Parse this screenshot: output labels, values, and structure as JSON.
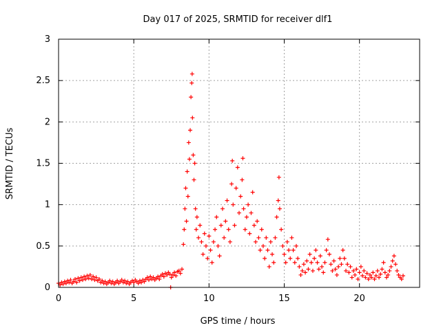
{
  "chart_data": {
    "type": "scatter",
    "title": "Day 017 of 2025, SRMTID for receiver dlf1",
    "xlabel": "GPS time / hours",
    "ylabel": "SRMTID / TECUs",
    "xlim": [
      0,
      24
    ],
    "ylim": [
      0,
      3
    ],
    "xticks": [
      0,
      5,
      10,
      15,
      20
    ],
    "yticks": [
      0,
      0.5,
      1,
      1.5,
      2,
      2.5,
      3
    ],
    "xtick_labels": [
      "0",
      "5",
      "10",
      "15",
      "20"
    ],
    "ytick_labels": [
      "0",
      "0.5",
      "1",
      "1.5",
      "2",
      "2.5",
      "3"
    ],
    "grid": true,
    "marker": "+",
    "color": "#ff0000",
    "series": [
      {
        "name": "dlf1",
        "points": [
          [
            0.0,
            0.05
          ],
          [
            0.1,
            0.03
          ],
          [
            0.2,
            0.06
          ],
          [
            0.3,
            0.04
          ],
          [
            0.4,
            0.07
          ],
          [
            0.5,
            0.05
          ],
          [
            0.6,
            0.08
          ],
          [
            0.7,
            0.06
          ],
          [
            0.8,
            0.09
          ],
          [
            0.9,
            0.05
          ],
          [
            1.0,
            0.07
          ],
          [
            1.1,
            0.1
          ],
          [
            1.2,
            0.06
          ],
          [
            1.3,
            0.11
          ],
          [
            1.4,
            0.08
          ],
          [
            1.5,
            0.12
          ],
          [
            1.6,
            0.09
          ],
          [
            1.7,
            0.13
          ],
          [
            1.8,
            0.1
          ],
          [
            1.9,
            0.14
          ],
          [
            2.0,
            0.11
          ],
          [
            2.1,
            0.15
          ],
          [
            2.2,
            0.1
          ],
          [
            2.3,
            0.13
          ],
          [
            2.4,
            0.09
          ],
          [
            2.5,
            0.12
          ],
          [
            2.6,
            0.08
          ],
          [
            2.7,
            0.1
          ],
          [
            2.8,
            0.06
          ],
          [
            2.9,
            0.08
          ],
          [
            3.0,
            0.05
          ],
          [
            3.1,
            0.07
          ],
          [
            3.2,
            0.04
          ],
          [
            3.3,
            0.06
          ],
          [
            3.4,
            0.08
          ],
          [
            3.5,
            0.05
          ],
          [
            3.6,
            0.07
          ],
          [
            3.7,
            0.04
          ],
          [
            3.8,
            0.06
          ],
          [
            3.9,
            0.08
          ],
          [
            4.0,
            0.05
          ],
          [
            4.1,
            0.07
          ],
          [
            4.2,
            0.09
          ],
          [
            4.3,
            0.06
          ],
          [
            4.4,
            0.08
          ],
          [
            4.5,
            0.05
          ],
          [
            4.6,
            0.07
          ],
          [
            4.7,
            0.04
          ],
          [
            4.8,
            0.06
          ],
          [
            4.9,
            0.08
          ],
          [
            5.0,
            0.06
          ],
          [
            5.1,
            0.09
          ],
          [
            5.2,
            0.07
          ],
          [
            5.3,
            0.05
          ],
          [
            5.4,
            0.08
          ],
          [
            5.5,
            0.06
          ],
          [
            5.6,
            0.09
          ],
          [
            5.7,
            0.07
          ],
          [
            5.8,
            0.1
          ],
          [
            5.9,
            0.12
          ],
          [
            6.0,
            0.09
          ],
          [
            6.1,
            0.13
          ],
          [
            6.2,
            0.1
          ],
          [
            6.3,
            0.12
          ],
          [
            6.4,
            0.09
          ],
          [
            6.5,
            0.11
          ],
          [
            6.6,
            0.13
          ],
          [
            6.7,
            0.1
          ],
          [
            6.8,
            0.14
          ],
          [
            6.9,
            0.16
          ],
          [
            7.0,
            0.13
          ],
          [
            7.1,
            0.17
          ],
          [
            7.2,
            0.15
          ],
          [
            7.3,
            0.18
          ],
          [
            7.4,
            0.16
          ],
          [
            7.45,
            0.0
          ],
          [
            7.5,
            0.12
          ],
          [
            7.6,
            0.15
          ],
          [
            7.7,
            0.18
          ],
          [
            7.8,
            0.14
          ],
          [
            7.9,
            0.19
          ],
          [
            8.0,
            0.2
          ],
          [
            8.1,
            0.17
          ],
          [
            8.2,
            0.22
          ],
          [
            8.3,
            0.52
          ],
          [
            8.35,
            0.7
          ],
          [
            8.4,
            0.95
          ],
          [
            8.45,
            1.2
          ],
          [
            8.5,
            0.8
          ],
          [
            8.55,
            1.4
          ],
          [
            8.6,
            1.1
          ],
          [
            8.65,
            1.75
          ],
          [
            8.7,
            1.55
          ],
          [
            8.75,
            1.9
          ],
          [
            8.8,
            2.3
          ],
          [
            8.85,
            2.47
          ],
          [
            8.88,
            2.58
          ],
          [
            8.9,
            2.05
          ],
          [
            8.95,
            1.6
          ],
          [
            9.0,
            1.3
          ],
          [
            9.05,
            1.5
          ],
          [
            9.1,
            0.95
          ],
          [
            9.15,
            0.7
          ],
          [
            9.2,
            0.85
          ],
          [
            9.3,
            0.6
          ],
          [
            9.4,
            0.75
          ],
          [
            9.5,
            0.55
          ],
          [
            9.6,
            0.4
          ],
          [
            9.7,
            0.65
          ],
          [
            9.8,
            0.5
          ],
          [
            9.9,
            0.35
          ],
          [
            10.0,
            0.62
          ],
          [
            10.1,
            0.45
          ],
          [
            10.2,
            0.3
          ],
          [
            10.3,
            0.55
          ],
          [
            10.4,
            0.7
          ],
          [
            10.5,
            0.85
          ],
          [
            10.6,
            0.5
          ],
          [
            10.7,
            0.38
          ],
          [
            10.8,
            0.75
          ],
          [
            10.9,
            0.95
          ],
          [
            11.0,
            0.6
          ],
          [
            11.1,
            0.8
          ],
          [
            11.2,
            1.05
          ],
          [
            11.3,
            0.7
          ],
          [
            11.4,
            0.55
          ],
          [
            11.5,
            1.25
          ],
          [
            11.55,
            1.53
          ],
          [
            11.6,
            1.0
          ],
          [
            11.7,
            0.75
          ],
          [
            11.8,
            1.2
          ],
          [
            11.9,
            1.45
          ],
          [
            12.0,
            0.9
          ],
          [
            12.1,
            1.1
          ],
          [
            12.2,
            1.3
          ],
          [
            12.25,
            1.56
          ],
          [
            12.3,
            0.95
          ],
          [
            12.4,
            0.7
          ],
          [
            12.5,
            0.85
          ],
          [
            12.6,
            1.0
          ],
          [
            12.7,
            0.65
          ],
          [
            12.8,
            0.9
          ],
          [
            12.9,
            1.15
          ],
          [
            13.0,
            0.75
          ],
          [
            13.1,
            0.55
          ],
          [
            13.2,
            0.8
          ],
          [
            13.3,
            0.6
          ],
          [
            13.4,
            0.45
          ],
          [
            13.5,
            0.7
          ],
          [
            13.6,
            0.5
          ],
          [
            13.7,
            0.35
          ],
          [
            13.8,
            0.6
          ],
          [
            13.9,
            0.45
          ],
          [
            14.0,
            0.25
          ],
          [
            14.1,
            0.55
          ],
          [
            14.2,
            0.4
          ],
          [
            14.3,
            0.3
          ],
          [
            14.4,
            0.6
          ],
          [
            14.5,
            0.85
          ],
          [
            14.6,
            1.05
          ],
          [
            14.65,
            1.33
          ],
          [
            14.7,
            0.95
          ],
          [
            14.8,
            0.7
          ],
          [
            14.9,
            0.5
          ],
          [
            15.0,
            0.4
          ],
          [
            15.1,
            0.3
          ],
          [
            15.2,
            0.55
          ],
          [
            15.3,
            0.45
          ],
          [
            15.4,
            0.35
          ],
          [
            15.5,
            0.6
          ],
          [
            15.6,
            0.45
          ],
          [
            15.7,
            0.3
          ],
          [
            15.8,
            0.5
          ],
          [
            15.9,
            0.35
          ],
          [
            16.0,
            0.25
          ],
          [
            16.1,
            0.15
          ],
          [
            16.2,
            0.2
          ],
          [
            16.3,
            0.28
          ],
          [
            16.4,
            0.18
          ],
          [
            16.5,
            0.32
          ],
          [
            16.6,
            0.22
          ],
          [
            16.7,
            0.4
          ],
          [
            16.8,
            0.3
          ],
          [
            16.9,
            0.2
          ],
          [
            17.0,
            0.35
          ],
          [
            17.1,
            0.45
          ],
          [
            17.2,
            0.3
          ],
          [
            17.3,
            0.22
          ],
          [
            17.4,
            0.38
          ],
          [
            17.5,
            0.25
          ],
          [
            17.6,
            0.18
          ],
          [
            17.7,
            0.3
          ],
          [
            17.8,
            0.45
          ],
          [
            17.9,
            0.58
          ],
          [
            18.0,
            0.4
          ],
          [
            18.1,
            0.28
          ],
          [
            18.2,
            0.2
          ],
          [
            18.3,
            0.32
          ],
          [
            18.4,
            0.22
          ],
          [
            18.5,
            0.15
          ],
          [
            18.6,
            0.25
          ],
          [
            18.7,
            0.35
          ],
          [
            18.8,
            0.28
          ],
          [
            18.9,
            0.45
          ],
          [
            19.0,
            0.35
          ],
          [
            19.1,
            0.2
          ],
          [
            19.2,
            0.28
          ],
          [
            19.3,
            0.18
          ],
          [
            19.4,
            0.25
          ],
          [
            19.5,
            0.12
          ],
          [
            19.6,
            0.2
          ],
          [
            19.7,
            0.15
          ],
          [
            19.8,
            0.22
          ],
          [
            19.9,
            0.1
          ],
          [
            20.0,
            0.18
          ],
          [
            20.1,
            0.25
          ],
          [
            20.2,
            0.14
          ],
          [
            20.3,
            0.2
          ],
          [
            20.4,
            0.12
          ],
          [
            20.5,
            0.17
          ],
          [
            20.6,
            0.1
          ],
          [
            20.7,
            0.15
          ],
          [
            20.8,
            0.12
          ],
          [
            20.9,
            0.18
          ],
          [
            21.0,
            0.1
          ],
          [
            21.1,
            0.14
          ],
          [
            21.2,
            0.2
          ],
          [
            21.3,
            0.12
          ],
          [
            21.4,
            0.16
          ],
          [
            21.5,
            0.22
          ],
          [
            21.6,
            0.3
          ],
          [
            21.7,
            0.18
          ],
          [
            21.8,
            0.12
          ],
          [
            21.9,
            0.15
          ],
          [
            22.0,
            0.2
          ],
          [
            22.1,
            0.25
          ],
          [
            22.2,
            0.32
          ],
          [
            22.3,
            0.38
          ],
          [
            22.4,
            0.28
          ],
          [
            22.5,
            0.2
          ],
          [
            22.6,
            0.15
          ],
          [
            22.7,
            0.12
          ],
          [
            22.8,
            0.1
          ],
          [
            22.9,
            0.14
          ]
        ]
      }
    ]
  }
}
